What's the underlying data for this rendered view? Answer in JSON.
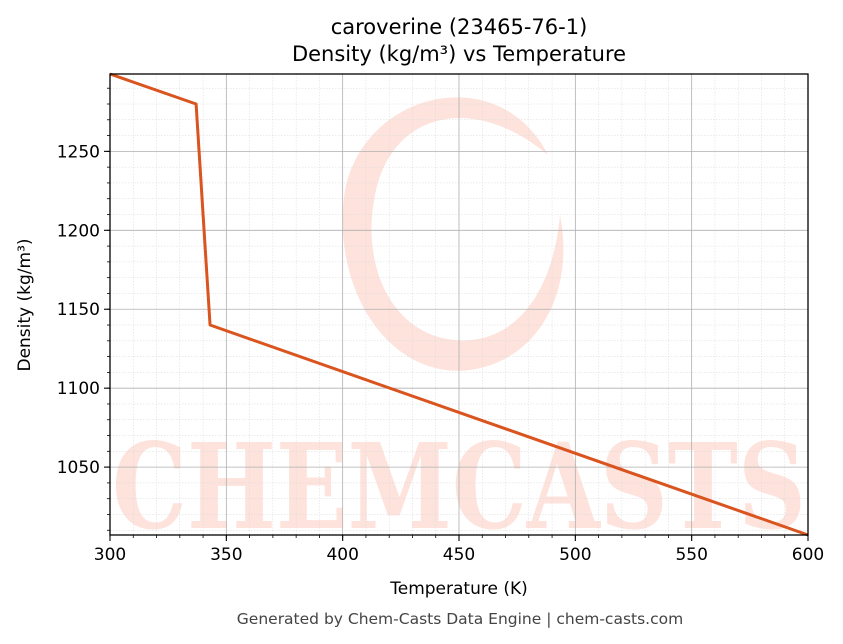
{
  "chart_data": {
    "type": "line",
    "title_line1": "caroverine (23465-76-1)",
    "title_line2": "Density (kg/m³) vs Temperature",
    "xlabel": "Temperature (K)",
    "ylabel": "Density (kg/m³)",
    "xlim": [
      300,
      600
    ],
    "ylim": [
      1007,
      1299
    ],
    "x_ticks": [
      300,
      350,
      400,
      450,
      500,
      550,
      600
    ],
    "y_ticks": [
      1050,
      1100,
      1150,
      1200,
      1250
    ],
    "x_minor_step": 10,
    "y_minor_step": 10,
    "grid": true,
    "line_color": "#d9541e",
    "series": [
      {
        "x": [
          300,
          337,
          343,
          600
        ],
        "y": [
          1299,
          1280,
          1140,
          1007
        ]
      }
    ]
  },
  "watermark": {
    "text": "CHEMCASTS",
    "color": "#fde3dc"
  },
  "footer": "Generated by Chem-Casts Data Engine | chem-casts.com"
}
